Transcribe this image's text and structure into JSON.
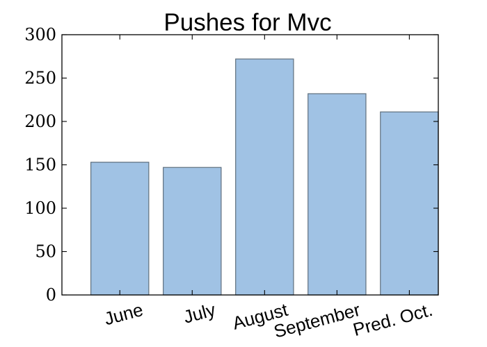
{
  "chart_data": {
    "type": "bar",
    "title": "Pushes for Mvc",
    "categories": [
      "June",
      "July",
      "August",
      "September",
      "Pred. Oct."
    ],
    "values": [
      153,
      147,
      272,
      232,
      211
    ],
    "ylim": [
      0,
      300
    ],
    "yticks": [
      0,
      50,
      100,
      150,
      200,
      250,
      300
    ],
    "xlabel": "",
    "ylabel": "",
    "bar_color": "#a0c2e4",
    "bar_edge_color": "#5f6f7d",
    "grid": false
  }
}
